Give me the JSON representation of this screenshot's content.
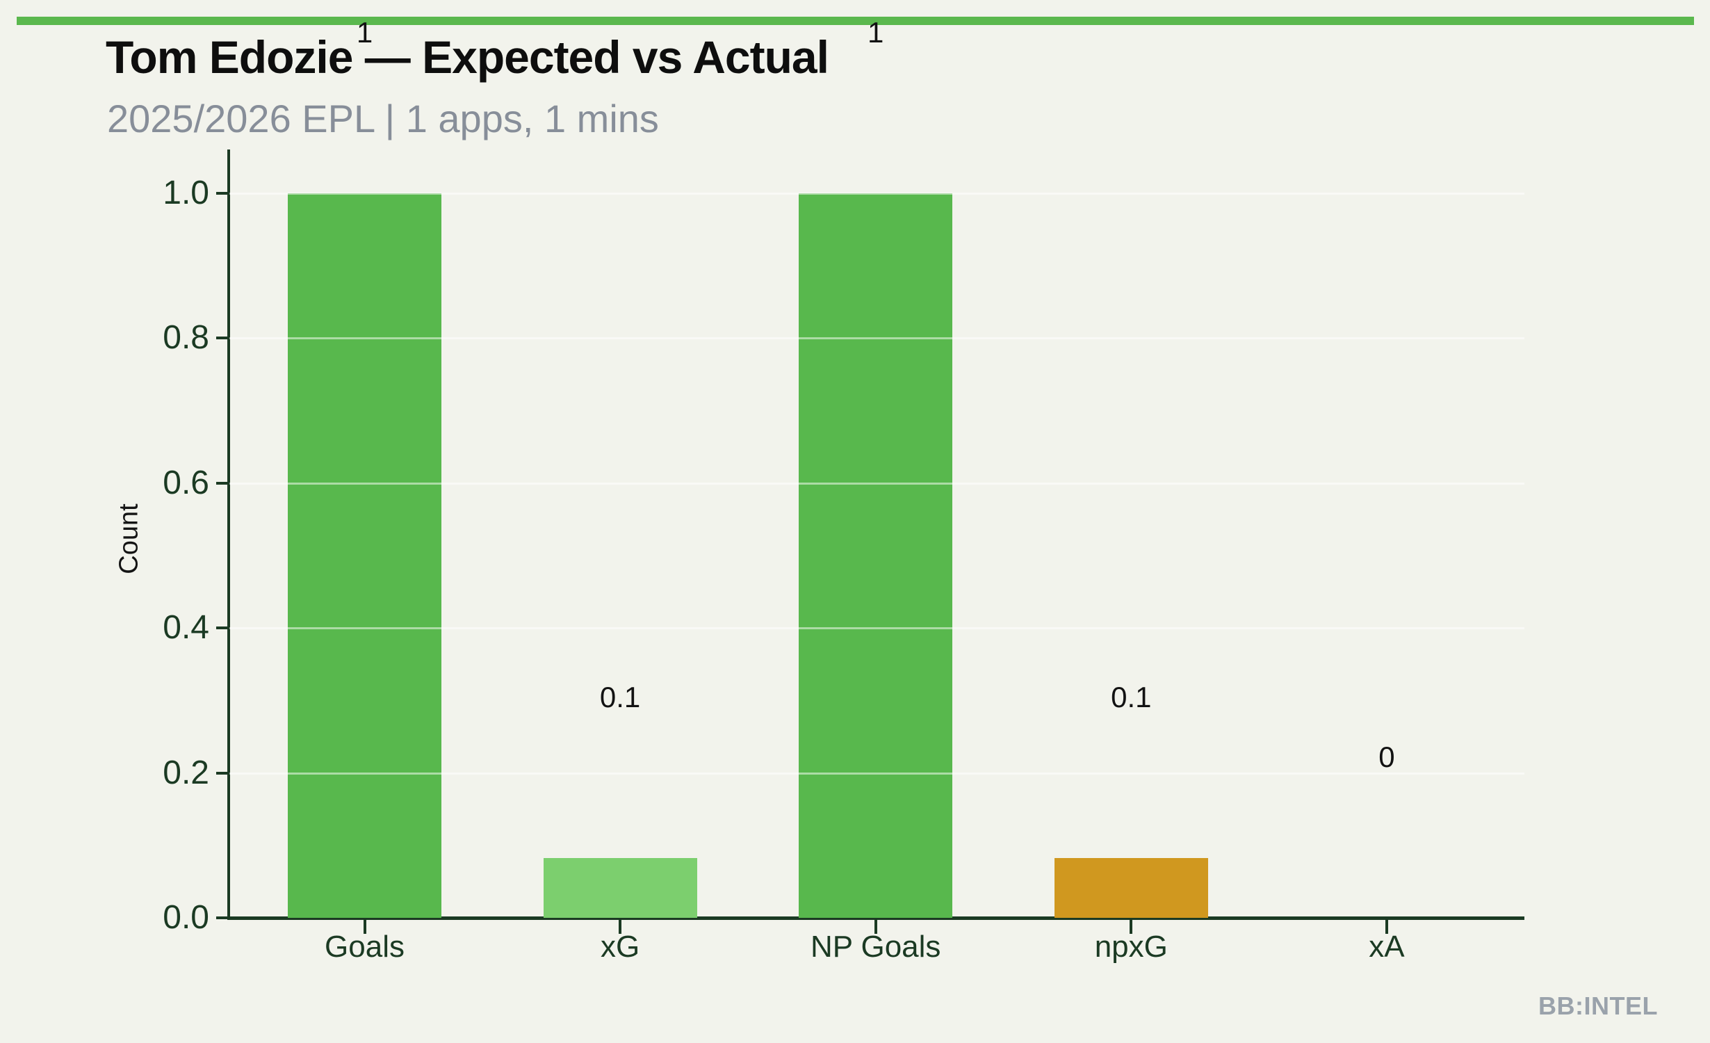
{
  "header": {
    "title": "Tom Edozie — Expected vs Actual",
    "subtitle": "2025/2026 EPL | 1 apps, 1 mins"
  },
  "chart_data": {
    "type": "bar",
    "title": "Tom Edozie — Expected vs Actual",
    "subtitle": "2025/2026 EPL | 1 apps, 1 mins",
    "categories": [
      "Goals",
      "xG",
      "NP Goals",
      "npxG",
      "xA"
    ],
    "values": [
      1,
      0.083,
      1,
      0.083,
      0
    ],
    "value_labels": [
      "1",
      "0.1",
      "1",
      "0.1",
      "0"
    ],
    "bar_colors": [
      "#58b84d",
      "#7ccf6e",
      "#58b84d",
      "#d0981f",
      "#58b84d"
    ],
    "xlabel": "",
    "ylabel": "Count",
    "yticks": [
      "0.0",
      "0.2",
      "0.4",
      "0.6",
      "0.8",
      "1.0"
    ],
    "ylim": [
      0,
      1.06
    ],
    "grid": "horizontal-faint",
    "legend": "none"
  },
  "colors": {
    "background": "#f2f3ec",
    "accent_stripe": "#5bb84e",
    "axis": "#1b3a23",
    "tick_text": "#1b3a23",
    "title_text": "#0e0e0e",
    "subtitle_text": "#878e99",
    "value_label_text": "#121212",
    "watermark_text": "#9aa2ab"
  },
  "footer": {
    "watermark": "BB:INTEL"
  }
}
